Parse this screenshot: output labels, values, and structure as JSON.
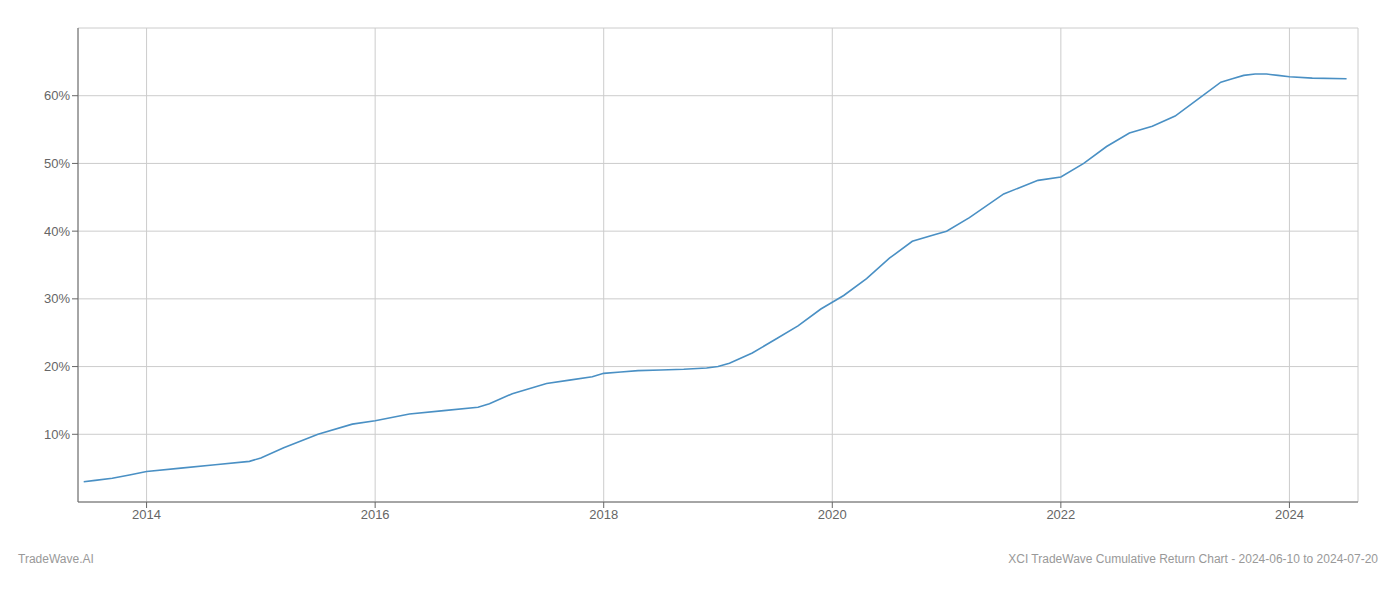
{
  "chart_data": {
    "type": "line",
    "title": "XCI TradeWave Cumulative Return Chart - 2024-06-10 to 2024-07-20",
    "annotations": [
      "TradeWave.AI"
    ],
    "color": "#4a90c4",
    "x": [
      2013.45,
      2013.55,
      2013.7,
      2013.85,
      2014.0,
      2014.3,
      2014.6,
      2014.9,
      2015.0,
      2015.2,
      2015.5,
      2015.8,
      2016.0,
      2016.3,
      2016.6,
      2016.9,
      2017.0,
      2017.2,
      2017.5,
      2017.7,
      2017.9,
      2018.0,
      2018.15,
      2018.3,
      2018.5,
      2018.7,
      2018.9,
      2019.0,
      2019.1,
      2019.3,
      2019.5,
      2019.7,
      2019.9,
      2020.0,
      2020.1,
      2020.3,
      2020.5,
      2020.7,
      2020.9,
      2021.0,
      2021.2,
      2021.5,
      2021.8,
      2022.0,
      2022.2,
      2022.4,
      2022.6,
      2022.8,
      2023.0,
      2023.2,
      2023.4,
      2023.5,
      2023.6,
      2023.7,
      2023.8,
      2023.9,
      2024.0,
      2024.2,
      2024.5
    ],
    "values": [
      3.0,
      3.2,
      3.5,
      4.0,
      4.5,
      5.0,
      5.5,
      6.0,
      6.5,
      8.0,
      10.0,
      11.5,
      12.0,
      13.0,
      13.5,
      14.0,
      14.5,
      16.0,
      17.5,
      18.0,
      18.5,
      19.0,
      19.2,
      19.4,
      19.5,
      19.6,
      19.8,
      20.0,
      20.5,
      22.0,
      24.0,
      26.0,
      28.5,
      29.5,
      30.5,
      33.0,
      36.0,
      38.5,
      39.5,
      40.0,
      42.0,
      45.5,
      47.5,
      48.0,
      50.0,
      52.5,
      54.5,
      55.5,
      57.0,
      59.5,
      62.0,
      62.5,
      63.0,
      63.2,
      63.2,
      63.0,
      62.8,
      62.6,
      62.5
    ],
    "xlim": [
      2013.4,
      2024.6
    ],
    "ylim": [
      0,
      70
    ],
    "xticks": [
      2014,
      2016,
      2018,
      2020,
      2022,
      2024
    ],
    "yticks": [
      {
        "value": 10,
        "label": "10%"
      },
      {
        "value": 20,
        "label": "20%"
      },
      {
        "value": 30,
        "label": "30%"
      },
      {
        "value": 40,
        "label": "40%"
      },
      {
        "value": 50,
        "label": "50%"
      },
      {
        "value": 60,
        "label": "60%"
      }
    ],
    "grid": true
  }
}
